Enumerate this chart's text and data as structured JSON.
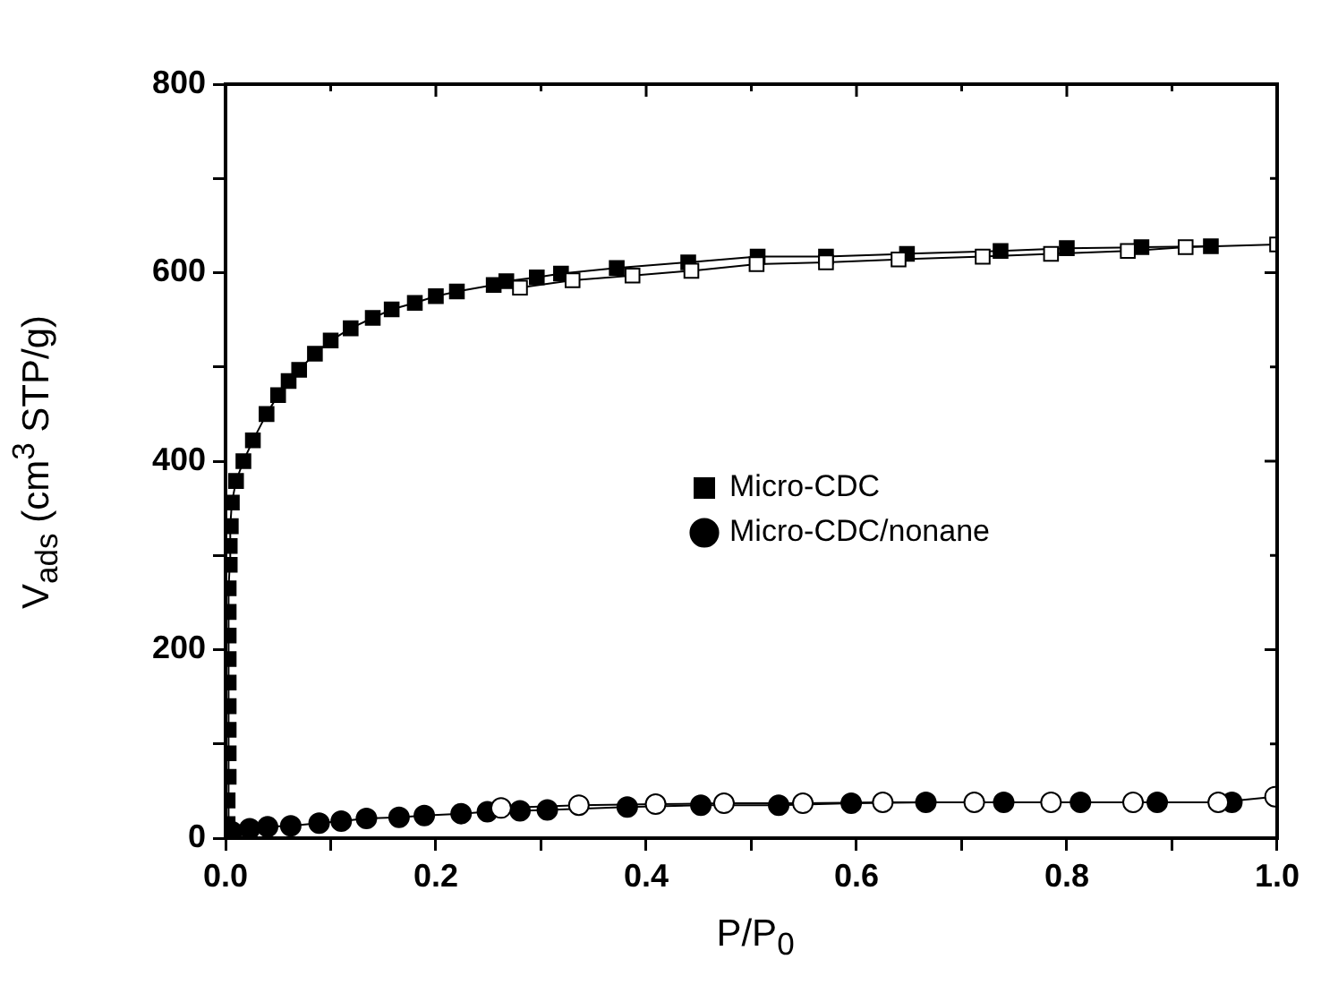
{
  "chart_data": {
    "type": "line",
    "xlabel": "P/P$_{0}$",
    "ylabel": "V$_{ads}$ (cm$^{3}$ STP/g)",
    "xlim": [
      0,
      1
    ],
    "ylim": [
      0,
      800
    ],
    "xticks": [
      {
        "value": 0,
        "label": "0.0"
      },
      {
        "value": 0.1,
        "label": null
      },
      0.2,
      {
        "value": 0.3,
        "label": null
      },
      0.4,
      {
        "value": 0.5,
        "label": null
      },
      0.6,
      {
        "value": 0.7,
        "label": null
      },
      0.8,
      {
        "value": 0.9,
        "label": null
      },
      {
        "value": 1,
        "label": "1.0"
      }
    ],
    "yticks": [
      0,
      {
        "value": 100,
        "label": null
      },
      200,
      {
        "value": 300,
        "label": null
      },
      400,
      {
        "value": 500,
        "label": null
      },
      600,
      {
        "value": 700,
        "label": null
      },
      800
    ],
    "grid": false,
    "legend": "center",
    "line_style": "solid",
    "series": [
      {
        "name": "Micro-CDC",
        "color": "#000000",
        "marker": "square",
        "x": [
          0.002,
          0.002,
          0.003,
          0.003,
          0.003,
          0.003,
          0.003,
          0.003,
          0.003,
          0.003,
          0.003,
          0.004,
          0.004,
          0.005,
          0.006,
          0.01,
          0.017,
          0.026,
          0.039,
          0.05,
          0.06,
          0.07,
          0.085,
          0.1,
          0.119,
          0.14,
          0.158,
          0.18,
          0.2,
          0.22,
          0.255,
          0.267,
          0.296,
          0.319,
          0.372,
          0.44,
          0.506,
          0.571,
          0.648,
          0.737,
          0.8,
          0.871,
          0.937
        ],
        "values": [
          15,
          40,
          65,
          90,
          115,
          140,
          165,
          190,
          215,
          240,
          265,
          290,
          310,
          331,
          356,
          379,
          400,
          422,
          450,
          470,
          485,
          497,
          514,
          528,
          541,
          552,
          561,
          568,
          575,
          580,
          587,
          591,
          595,
          599,
          605,
          611,
          617,
          617,
          620,
          623,
          626,
          627,
          628
        ]
      },
      {
        "color": "#ffffff",
        "marker": "square",
        "x": [
          1.0,
          0.913,
          0.858,
          0.785,
          0.72,
          0.64,
          0.571,
          0.505,
          0.443,
          0.387,
          0.33,
          0.28
        ],
        "values": [
          630,
          627,
          623,
          620,
          617,
          614,
          611,
          609,
          602,
          597,
          592,
          584
        ]
      },
      {
        "name": "Micro-CDC/nonane",
        "color": "#000000",
        "marker": "circle",
        "x": [
          0.006,
          0.023,
          0.04,
          0.062,
          0.089,
          0.11,
          0.134,
          0.165,
          0.189,
          0.224,
          0.249,
          0.28,
          0.306,
          0.382,
          0.452,
          0.526,
          0.595,
          0.666,
          0.74,
          0.813,
          0.886,
          0.957
        ],
        "values": [
          7,
          10,
          12,
          13,
          16,
          18,
          21,
          22,
          24,
          26,
          28,
          29,
          30,
          33,
          35,
          35,
          37,
          38,
          38,
          38,
          38,
          38
        ]
      },
      {
        "color": "#ffffff",
        "marker": "circle",
        "x": [
          0.998,
          0.944,
          0.863,
          0.785,
          0.712,
          0.625,
          0.549,
          0.474,
          0.409,
          0.336,
          0.262
        ],
        "values": [
          44,
          38,
          38,
          38,
          38,
          38,
          37,
          37,
          36,
          35,
          32
        ]
      }
    ]
  }
}
